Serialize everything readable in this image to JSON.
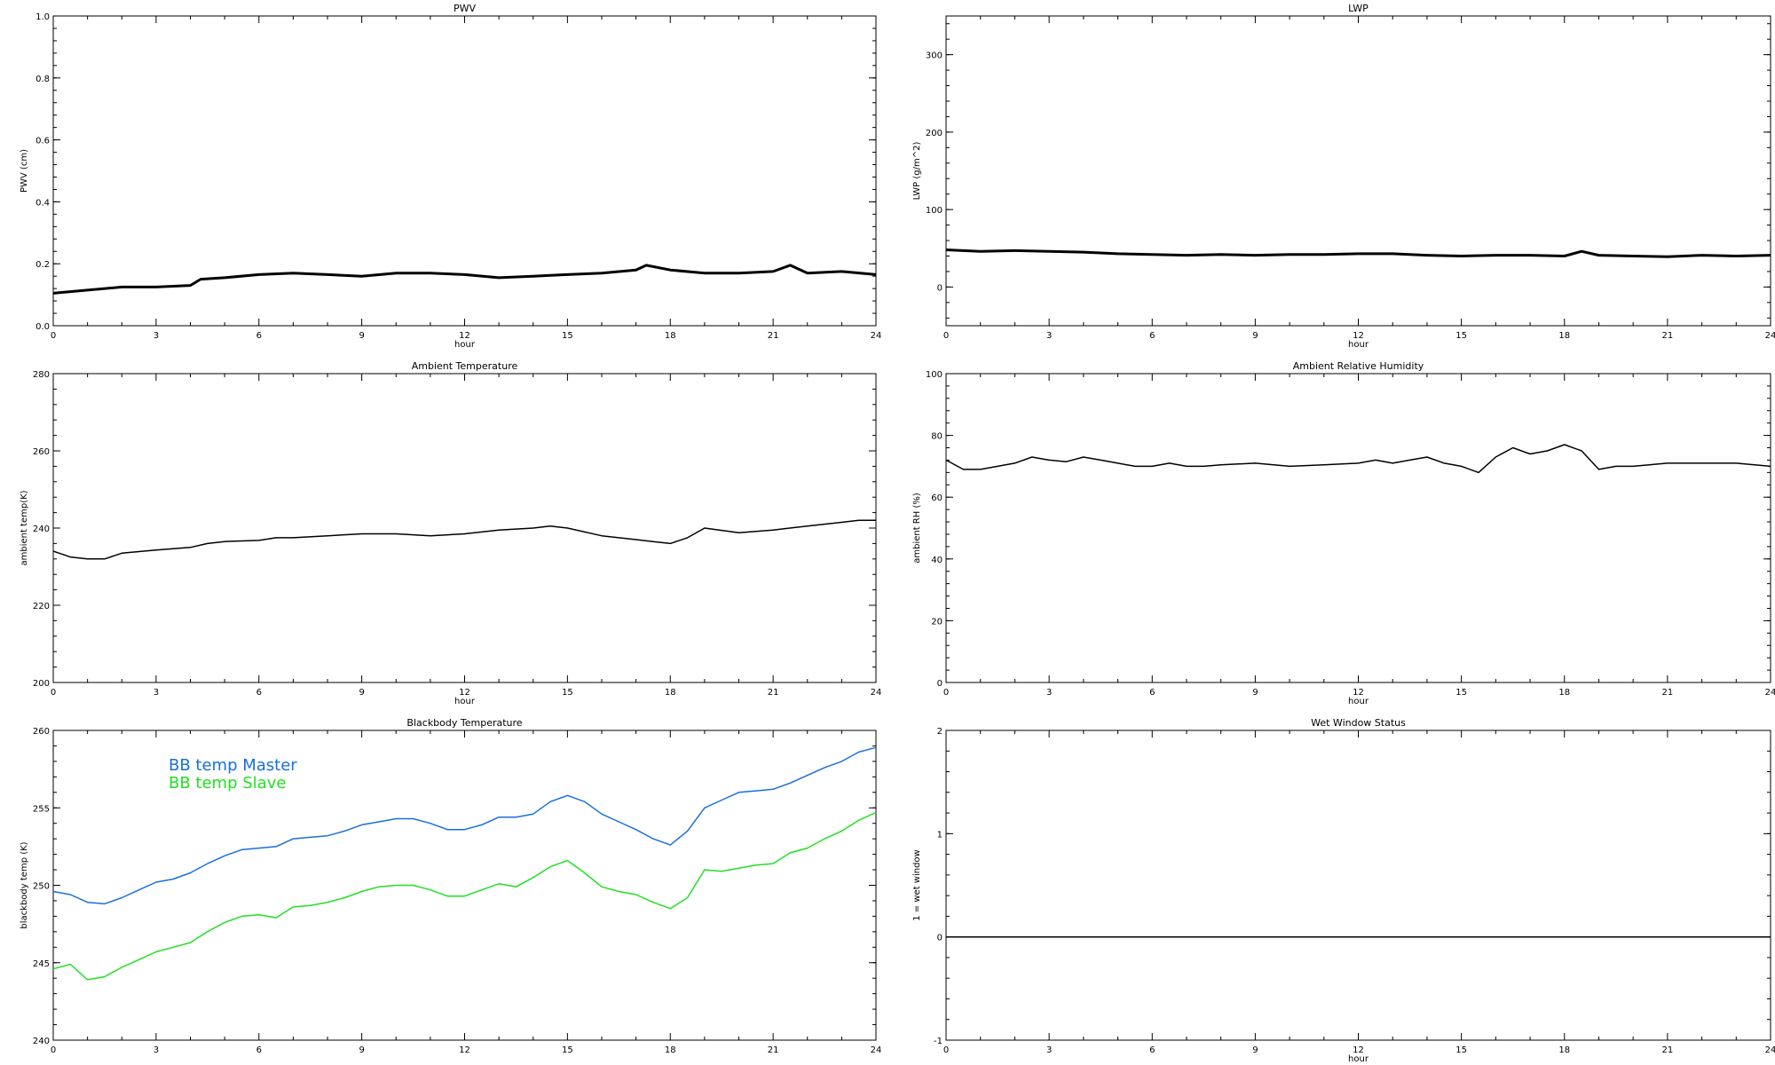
{
  "chart_data": [
    {
      "type": "line",
      "title": "PWV",
      "xlabel": "hour",
      "ylabel": "PWV (cm)",
      "xlim": [
        0,
        24
      ],
      "ylim": [
        0.0,
        1.0
      ],
      "x_ticks": [
        "0",
        "3",
        "6",
        "9",
        "12",
        "15",
        "18",
        "21",
        "24"
      ],
      "y_ticks": [
        "0.0",
        "0.2",
        "0.4",
        "0.6",
        "0.8",
        "1.0"
      ],
      "grid": false,
      "series": [
        {
          "color": "#000000",
          "x": [
            0,
            1,
            2,
            3,
            4,
            4.3,
            5,
            6,
            7,
            8,
            9,
            10,
            11,
            12,
            13,
            14,
            15,
            16,
            17,
            17.3,
            18,
            19,
            20,
            21,
            21.5,
            22,
            23,
            24
          ],
          "y": [
            0.105,
            0.115,
            0.125,
            0.125,
            0.13,
            0.15,
            0.155,
            0.165,
            0.17,
            0.165,
            0.16,
            0.17,
            0.17,
            0.165,
            0.155,
            0.16,
            0.165,
            0.17,
            0.18,
            0.195,
            0.18,
            0.17,
            0.17,
            0.175,
            0.195,
            0.17,
            0.175,
            0.165
          ]
        }
      ]
    },
    {
      "type": "line",
      "title": "LWP",
      "xlabel": "hour",
      "ylabel": "LWP (g/m^2)",
      "xlim": [
        0,
        24
      ],
      "ylim": [
        -50,
        350
      ],
      "x_ticks": [
        "0",
        "3",
        "6",
        "9",
        "12",
        "15",
        "18",
        "21",
        "24"
      ],
      "y_ticks": [
        "0",
        "100",
        "200",
        "300"
      ],
      "grid": false,
      "series": [
        {
          "color": "#000000",
          "x": [
            0,
            1,
            2,
            3,
            4,
            5,
            6,
            7,
            8,
            9,
            10,
            11,
            12,
            13,
            14,
            15,
            16,
            17,
            18,
            18.5,
            19,
            20,
            21,
            22,
            23,
            24
          ],
          "y": [
            48,
            46,
            47,
            46,
            45,
            43,
            42,
            41,
            42,
            41,
            42,
            42,
            43,
            43,
            41,
            40,
            41,
            41,
            40,
            46,
            41,
            40,
            39,
            41,
            40,
            41
          ]
        }
      ]
    },
    {
      "type": "line",
      "title": "Ambient Temperature",
      "xlabel": "hour",
      "ylabel": "ambient temp(K)",
      "xlim": [
        0,
        24
      ],
      "ylim": [
        200,
        280
      ],
      "x_ticks": [
        "0",
        "3",
        "6",
        "9",
        "12",
        "15",
        "18",
        "21",
        "24"
      ],
      "y_ticks": [
        "200",
        "220",
        "240",
        "260",
        "280"
      ],
      "grid": false,
      "series": [
        {
          "color": "#000000",
          "x": [
            0,
            0.5,
            1,
            1.5,
            2,
            3,
            4,
            4.5,
            5,
            6,
            6.5,
            7,
            8,
            9,
            10,
            11,
            12,
            13,
            14,
            14.5,
            15,
            16,
            17,
            17.5,
            18,
            18.5,
            19,
            20,
            21,
            22,
            23,
            23.5,
            24
          ],
          "y": [
            234,
            232.5,
            232,
            232,
            233.5,
            234.3,
            235,
            236,
            236.5,
            236.8,
            237.5,
            237.5,
            238,
            238.5,
            238.5,
            238,
            238.5,
            239.5,
            240,
            240.5,
            240,
            238,
            237,
            236.5,
            236,
            237.5,
            240,
            238.8,
            239.5,
            240.5,
            241.5,
            242,
            242
          ]
        }
      ]
    },
    {
      "type": "line",
      "title": "Ambient Relative Humidity",
      "xlabel": "hour",
      "ylabel": "ambient RH (%)",
      "xlim": [
        0,
        24
      ],
      "ylim": [
        0,
        100
      ],
      "x_ticks": [
        "0",
        "3",
        "6",
        "9",
        "12",
        "15",
        "18",
        "21",
        "24"
      ],
      "y_ticks": [
        "0",
        "20",
        "40",
        "60",
        "80",
        "100"
      ],
      "grid": false,
      "series": [
        {
          "color": "#000000",
          "x": [
            0,
            0.5,
            1,
            1.5,
            2,
            2.5,
            3,
            3.5,
            4,
            4.5,
            5,
            5.5,
            6,
            6.5,
            7,
            7.5,
            8,
            9,
            10,
            11,
            12,
            12.5,
            13,
            13.5,
            14,
            14.5,
            15,
            15.5,
            16,
            16.5,
            17,
            17.5,
            18,
            18.5,
            19,
            19.5,
            20,
            21,
            22,
            23,
            24
          ],
          "y": [
            72,
            69,
            69,
            70,
            71,
            73,
            72,
            71.5,
            73,
            72,
            71,
            70,
            70,
            71,
            70,
            70,
            70.5,
            71,
            70,
            70.5,
            71,
            72,
            71,
            72,
            73,
            71,
            70,
            68,
            73,
            76,
            74,
            75,
            77,
            75,
            69,
            70,
            70,
            71,
            71,
            71,
            70
          ]
        }
      ]
    },
    {
      "type": "line",
      "title": "Blackbody Temperature",
      "xlabel": "",
      "ylabel": "blackbody temp (K)",
      "xlim": [
        0,
        24
      ],
      "ylim": [
        240,
        260
      ],
      "x_ticks": [
        "0",
        "3",
        "6",
        "9",
        "12",
        "15",
        "18",
        "21",
        "24"
      ],
      "y_ticks": [
        "240",
        "245",
        "250",
        "255",
        "260"
      ],
      "grid": false,
      "legend": "top-left",
      "series": [
        {
          "name": "BB temp Master",
          "color": "#1a6fdc",
          "x": [
            0,
            0.5,
            1,
            1.5,
            2,
            2.5,
            3,
            3.5,
            4,
            4.5,
            5,
            5.5,
            6,
            6.5,
            7,
            7.5,
            8,
            8.5,
            9,
            9.5,
            10,
            10.5,
            11,
            11.5,
            12,
            12.5,
            13,
            13.5,
            14,
            14.5,
            15,
            15.5,
            16,
            16.5,
            17,
            17.5,
            18,
            18.5,
            19,
            19.5,
            20,
            20.5,
            21,
            21.5,
            22,
            22.5,
            23,
            23.5,
            24
          ],
          "y": [
            249.6,
            249.4,
            248.9,
            248.8,
            249.2,
            249.7,
            250.2,
            250.4,
            250.8,
            251.4,
            251.9,
            252.3,
            252.4,
            252.5,
            253.0,
            253.1,
            253.2,
            253.5,
            253.9,
            254.1,
            254.3,
            254.3,
            254.0,
            253.6,
            253.6,
            253.9,
            254.4,
            254.4,
            254.6,
            255.4,
            255.8,
            255.4,
            254.6,
            254.1,
            253.6,
            253.0,
            252.6,
            253.5,
            255.0,
            255.5,
            256.0,
            256.1,
            256.2,
            256.6,
            257.1,
            257.6,
            258.0,
            258.6,
            258.9
          ]
        },
        {
          "name": "BB temp Slave",
          "color": "#22e022",
          "x": [
            0,
            0.5,
            1,
            1.5,
            2,
            2.5,
            3,
            3.5,
            4,
            4.5,
            5,
            5.5,
            6,
            6.5,
            7,
            7.5,
            8,
            8.5,
            9,
            9.5,
            10,
            10.5,
            11,
            11.5,
            12,
            12.5,
            13,
            13.5,
            14,
            14.5,
            15,
            15.5,
            16,
            16.5,
            17,
            17.5,
            18,
            18.5,
            19,
            19.5,
            20,
            20.5,
            21,
            21.5,
            22,
            22.5,
            23,
            23.5,
            24
          ],
          "y": [
            244.6,
            244.9,
            243.9,
            244.1,
            244.7,
            245.2,
            245.7,
            246.0,
            246.3,
            247.0,
            247.6,
            248.0,
            248.1,
            247.9,
            248.6,
            248.7,
            248.9,
            249.2,
            249.6,
            249.9,
            250.0,
            250.0,
            249.7,
            249.3,
            249.3,
            249.7,
            250.1,
            249.9,
            250.5,
            251.2,
            251.6,
            250.8,
            249.9,
            249.6,
            249.4,
            248.9,
            248.5,
            249.2,
            251.0,
            250.9,
            251.1,
            251.3,
            251.4,
            252.1,
            252.4,
            253.0,
            253.5,
            254.2,
            254.7
          ]
        }
      ]
    },
    {
      "type": "line",
      "title": "Wet Window Status",
      "xlabel": "hour",
      "ylabel": "1 = wet window",
      "xlim": [
        0,
        24
      ],
      "ylim": [
        -1,
        2
      ],
      "x_ticks": [
        "0",
        "3",
        "6",
        "9",
        "12",
        "15",
        "18",
        "21",
        "24"
      ],
      "y_ticks": [
        "-1",
        "0",
        "1",
        "2"
      ],
      "grid": false,
      "series": [
        {
          "color": "#000000",
          "x": [
            0,
            24
          ],
          "y": [
            0,
            0
          ]
        }
      ]
    }
  ]
}
